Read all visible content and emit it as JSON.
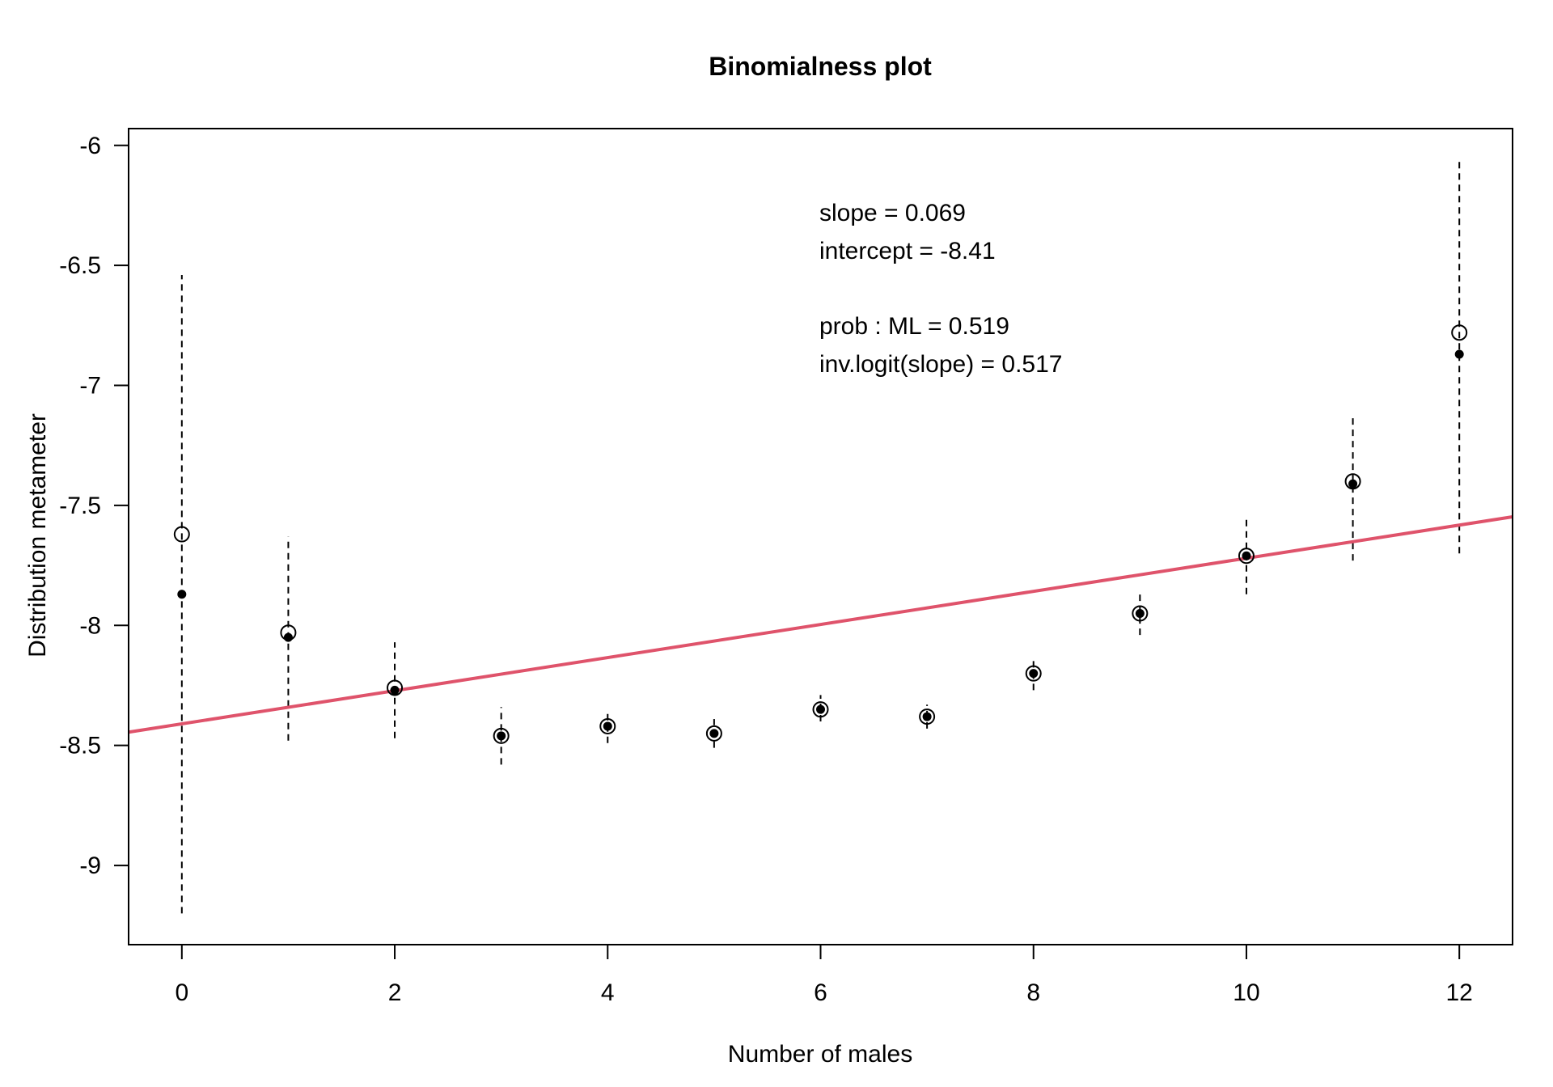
{
  "chart_data": {
    "type": "scatter",
    "title": "Binomialness plot",
    "xlabel": "Number of males",
    "ylabel": "Distribution metameter",
    "xlim": [
      -0.5,
      12.5
    ],
    "ylim": [
      -9.33,
      -5.93
    ],
    "x_ticks": [
      0,
      2,
      4,
      6,
      8,
      10,
      12
    ],
    "y_ticks": [
      -6,
      -6.5,
      -7,
      -7.5,
      -8,
      -8.5,
      -9
    ],
    "x_tick_labels": [
      "0",
      "2",
      "4",
      "6",
      "8",
      "10",
      "12"
    ],
    "y_tick_labels": [
      "-6",
      "-6.5",
      "-7",
      "-7.5",
      "-8",
      "-8.5",
      "-9"
    ],
    "grid": false,
    "fit_line": {
      "slope": 0.069,
      "intercept": -8.41,
      "color": "#DF536B"
    },
    "series": [
      {
        "marker": "open-circle",
        "x": [
          0,
          1,
          2,
          3,
          4,
          5,
          6,
          7,
          8,
          9,
          10,
          11,
          12
        ],
        "y": [
          -7.62,
          -8.03,
          -8.26,
          -8.46,
          -8.42,
          -8.45,
          -8.35,
          -8.38,
          -8.2,
          -7.95,
          -7.71,
          -7.4,
          -6.78
        ]
      },
      {
        "marker": "filled-dot",
        "x": [
          0,
          1,
          2,
          3,
          4,
          5,
          6,
          7,
          8,
          9,
          10,
          11,
          12
        ],
        "y": [
          -7.87,
          -8.05,
          -8.27,
          -8.46,
          -8.42,
          -8.45,
          -8.35,
          -8.38,
          -8.2,
          -7.95,
          -7.71,
          -7.41,
          -6.87
        ]
      }
    ],
    "error_bars": {
      "style": "dashed",
      "x": [
        0,
        1,
        2,
        3,
        4,
        5,
        6,
        7,
        8,
        9,
        10,
        11,
        12
      ],
      "lower": [
        -9.2,
        -8.48,
        -8.47,
        -8.58,
        -8.49,
        -8.51,
        -8.4,
        -8.43,
        -8.27,
        -8.04,
        -7.87,
        -7.73,
        -7.7
      ],
      "upper": [
        -6.54,
        -7.63,
        -8.07,
        -8.34,
        -8.35,
        -8.39,
        -8.29,
        -8.33,
        -8.13,
        -7.86,
        -7.56,
        -7.13,
        -6.06
      ]
    },
    "annotations": [
      "slope = 0.069",
      "intercept = -8.41",
      "prob : ML = 0.519",
      "inv.logit(slope) = 0.517"
    ]
  }
}
